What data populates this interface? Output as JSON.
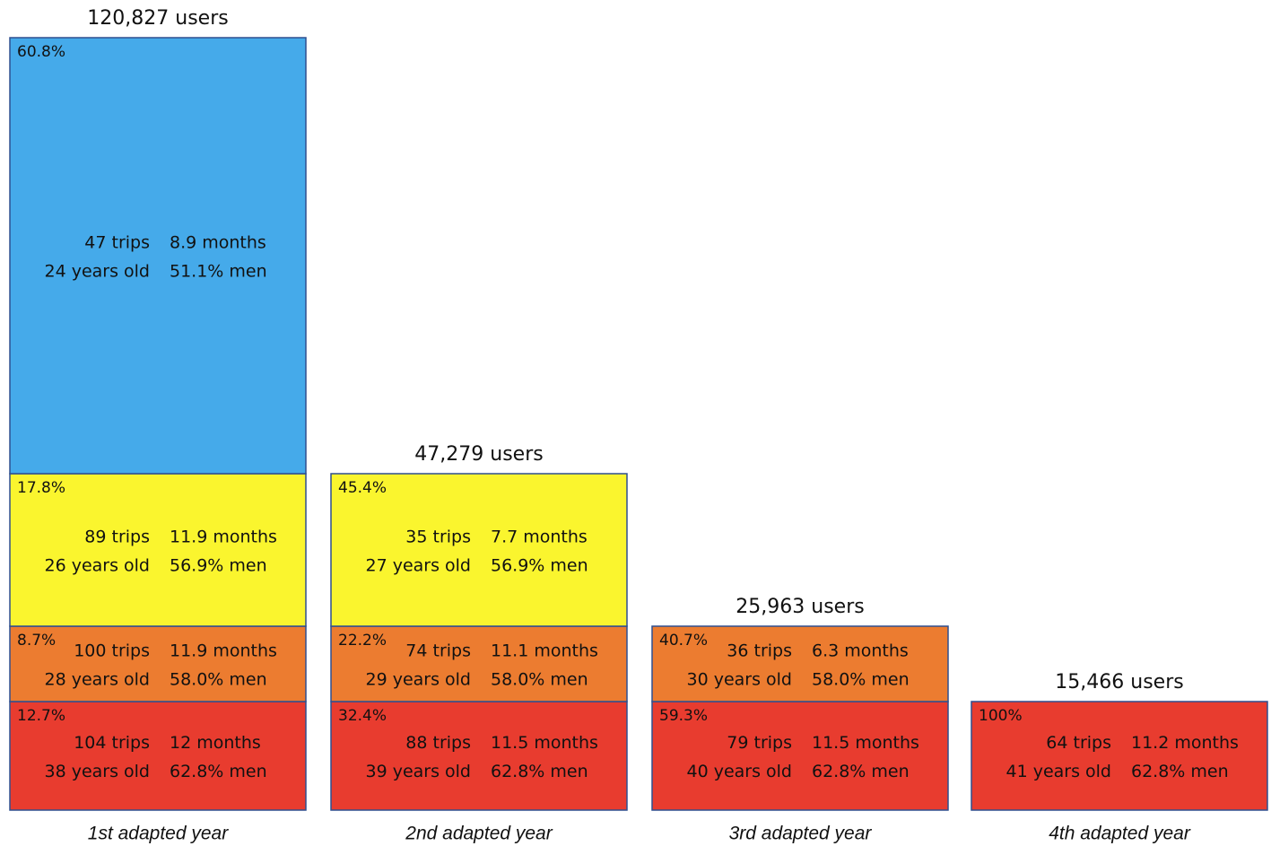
{
  "columns": [
    {
      "total": "120,827 users",
      "label": "1st adapted year",
      "segments": [
        {
          "share": "12.7%",
          "trips": "104 trips",
          "months": "12 months",
          "age": "38 years old",
          "men": "62.8% men"
        },
        {
          "share": "8.7%",
          "trips": "100 trips",
          "months": "11.9 months",
          "age": "28 years old",
          "men": "58.0% men"
        },
        {
          "share": "17.8%",
          "trips": "89 trips",
          "months": "11.9 months",
          "age": "26 years old",
          "men": "56.9% men"
        },
        {
          "share": "60.8%",
          "trips": "47 trips",
          "months": "8.9 months",
          "age": "24 years old",
          "men": "51.1% men"
        }
      ]
    },
    {
      "total": "47,279 users",
      "label": "2nd adapted year",
      "segments": [
        {
          "share": "32.4%",
          "trips": "88 trips",
          "months": "11.5 months",
          "age": "39 years old",
          "men": "62.8% men"
        },
        {
          "share": "22.2%",
          "trips": "74 trips",
          "months": "11.1 months",
          "age": "29 years old",
          "men": "58.0% men"
        },
        {
          "share": "45.4%",
          "trips": "35 trips",
          "months": "7.7 months",
          "age": "27 years old",
          "men": "56.9% men"
        }
      ]
    },
    {
      "total": "25,963 users",
      "label": "3rd adapted year",
      "segments": [
        {
          "share": "59.3%",
          "trips": "79 trips",
          "months": "11.5 months",
          "age": "40 years old",
          "men": "62.8% men"
        },
        {
          "share": "40.7%",
          "trips": "36 trips",
          "months": "6.3 months",
          "age": "30 years old",
          "men": "58.0% men"
        }
      ]
    },
    {
      "total": "15,466 users",
      "label": "4th adapted year",
      "segments": [
        {
          "share": "100%",
          "trips": "64 trips",
          "months": "11.2 months",
          "age": "41 years old",
          "men": "62.8% men"
        }
      ]
    }
  ]
}
